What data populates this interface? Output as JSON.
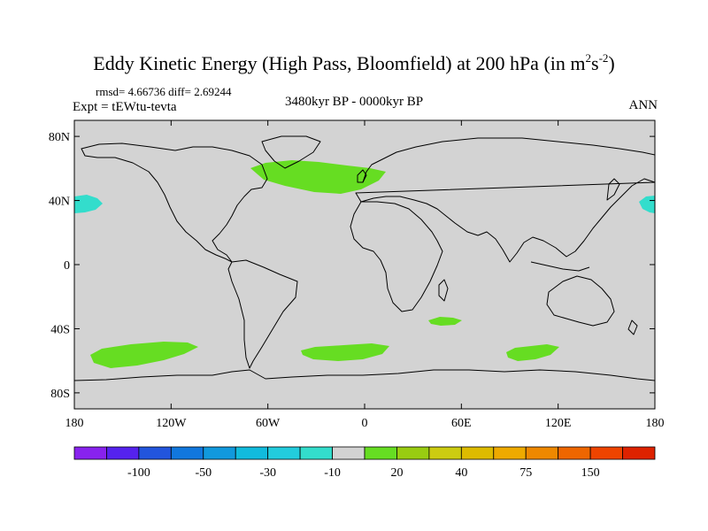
{
  "title": {
    "main": "Eddy Kinetic Energy (High Pass, Bloomfield) at 200 hPa (in m",
    "unit_sup1": "2",
    "unit_s": "s",
    "unit_sup2": "-2",
    "close": ")"
  },
  "subtitle": {
    "stats": "rmsd= 4.66736 diff= 2.69244",
    "expt": "Expt = tEWtu-tevta",
    "period": "3480kyr BP - 0000kyr BP",
    "season": "ANN"
  },
  "map": {
    "lon_ticks": [
      "180",
      "120W",
      "60W",
      "0",
      "60E",
      "120E",
      "180"
    ],
    "lat_ticks": [
      "80N",
      "40N",
      "0",
      "40S",
      "80S"
    ],
    "lon_range": [
      -180,
      180
    ],
    "lat_range": [
      -90,
      90
    ],
    "background_color": "#d3d3d3",
    "coast_color": "#000000"
  },
  "fields": [
    {
      "name": "north-atlantic-positive",
      "category": "10 to 20",
      "color": "#66dd22"
    },
    {
      "name": "south-pacific-positive",
      "category": "10 to 20",
      "color": "#66dd22"
    },
    {
      "name": "south-atlantic-positive",
      "category": "10 to 20",
      "color": "#66dd22"
    },
    {
      "name": "south-indian-east-positive",
      "category": "10 to 20",
      "color": "#66dd22"
    },
    {
      "name": "south-indian-west-positive",
      "category": "10 to 20",
      "color": "#66dd22"
    },
    {
      "name": "north-pacific-west-negative",
      "category": "-20 to -10",
      "color": "#33ddcc"
    },
    {
      "name": "north-pacific-east-negative",
      "category": "-20 to -10",
      "color": "#33ddcc"
    }
  ],
  "colorbar": {
    "colors": [
      "#8822ee",
      "#5522ee",
      "#2255dd",
      "#1177dd",
      "#1199dd",
      "#11bbdd",
      "#22ccdd",
      "#33ddcc",
      "#d3d3d3",
      "#66dd22",
      "#99cc11",
      "#cccc11",
      "#ddbb00",
      "#eeaa00",
      "#ee8800",
      "#ee6600",
      "#ee4400",
      "#dd2200"
    ],
    "labels": [
      "-100",
      "-50",
      "-30",
      "-10",
      "20",
      "40",
      "75",
      "150"
    ]
  }
}
